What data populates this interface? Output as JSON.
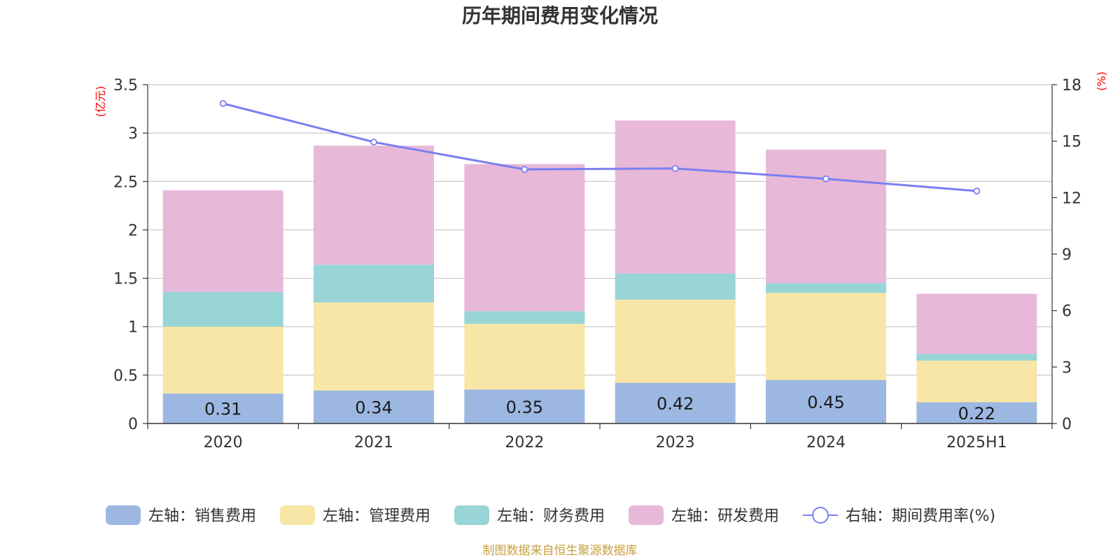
{
  "chart_data": {
    "type": "bar",
    "title": "历年期间费用变化情况",
    "categories": [
      "2020",
      "2021",
      "2022",
      "2023",
      "2024",
      "2025H1"
    ],
    "left_axis": {
      "unit": "(亿元)",
      "ylim": [
        0,
        3.5
      ],
      "ticks": [
        "0",
        "0.5",
        "1",
        "1.5",
        "2",
        "2.5",
        "3",
        "3.5"
      ]
    },
    "right_axis": {
      "unit": "(%)",
      "ylim": [
        0,
        18
      ],
      "ticks": [
        "0",
        "3",
        "6",
        "9",
        "12",
        "15",
        "18"
      ]
    },
    "series": [
      {
        "name": "左轴：销售费用",
        "type": "bar",
        "axis": "left",
        "color": "#9cb8e2",
        "values": [
          0.31,
          0.34,
          0.35,
          0.42,
          0.45,
          0.22
        ],
        "labels": [
          "0.31",
          "0.34",
          "0.35",
          "0.42",
          "0.45",
          "0.22"
        ]
      },
      {
        "name": "左轴：管理费用",
        "type": "bar",
        "axis": "left",
        "color": "#f7e6a6",
        "values": [
          0.69,
          0.91,
          0.68,
          0.86,
          0.9,
          0.43
        ]
      },
      {
        "name": "左轴：财务费用",
        "type": "bar",
        "axis": "left",
        "color": "#99d4d6",
        "values": [
          0.36,
          0.39,
          0.13,
          0.27,
          0.1,
          0.07
        ]
      },
      {
        "name": "左轴：研发费用",
        "type": "bar",
        "axis": "left",
        "color": "#e8b8d9",
        "values": [
          1.05,
          1.23,
          1.52,
          1.58,
          1.38,
          0.62
        ]
      },
      {
        "name": "右轴：期间费用率(%)",
        "type": "line",
        "axis": "right",
        "color": "#7b7ff0",
        "values": [
          17.0,
          14.95,
          13.5,
          13.55,
          13.0,
          12.35
        ]
      }
    ],
    "stacked": true,
    "grid": true,
    "legend_position": "bottom"
  },
  "footer": {
    "source": "制图数据来自恒生聚源数据库"
  }
}
